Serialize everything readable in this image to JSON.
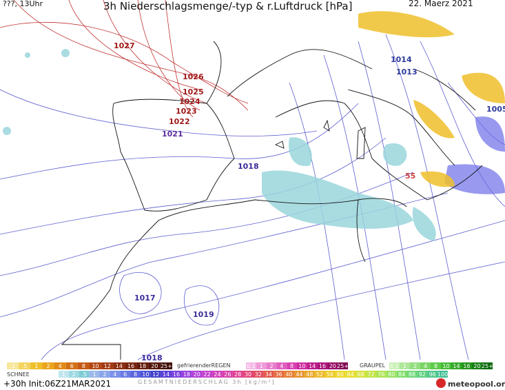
{
  "header": {
    "left": "???, 13Uhr",
    "title": "3h Niederschlagsmenge/-typ & r.Luftdruck [hPa]",
    "date": "22. Maerz 2021"
  },
  "isobar_labels": [
    "1027",
    "1026",
    "1025",
    "1024",
    "1023",
    "1022",
    "1021",
    "1018",
    "1014",
    "1013",
    "1005",
    "1017",
    "1019",
    "1018",
    "55"
  ],
  "legend": {
    "rain": {
      "labels": [
        ".1",
        ".5",
        "1",
        "2",
        "4",
        "6",
        "8",
        "10",
        "12",
        "14",
        "16",
        "18",
        "20",
        "25+"
      ],
      "colors": [
        "#f6e79a",
        "#f3d35c",
        "#efbf2a",
        "#e9a51c",
        "#e08a17",
        "#d27016",
        "#c45a15",
        "#b34713",
        "#a13a12",
        "#8c2e10",
        "#78240d",
        "#651c0b",
        "#521409",
        "#3f0e07"
      ]
    },
    "freezing_rain": {
      "title": "gefrierenderREGEN",
      "labels": [
        "0.1",
        "1",
        "2",
        "4",
        "8",
        "10",
        "14",
        "16",
        "20",
        "25+"
      ],
      "colors": [
        "#f5b8e6",
        "#ef9ad9",
        "#e87ccc",
        "#e05ebf",
        "#d840b2",
        "#cc2aa0",
        "#bc1c8c",
        "#aa1278",
        "#960a64",
        "#800550"
      ]
    },
    "graupel": {
      "title": "GRAUPEL",
      "labels": [
        "0.1",
        "1",
        "2",
        "4",
        "8",
        "10",
        "14",
        "16",
        "20",
        "25+"
      ],
      "colors": [
        "#c9f0b5",
        "#aee79a",
        "#93de7f",
        "#78d464",
        "#5dca49",
        "#46bb36",
        "#33a828",
        "#23931d",
        "#167e14",
        "#0b680c"
      ]
    },
    "snow": {
      "title": "SCHNEE",
      "labels": [
        "1",
        "2",
        ".5",
        "1",
        "2",
        "4",
        "6",
        "8",
        "10",
        "12",
        "14",
        "16",
        "18",
        "20",
        "22",
        "24",
        "26",
        "28",
        "30",
        "32",
        "34",
        "36",
        "40",
        "44",
        "48",
        "52",
        "56",
        "60",
        "64",
        "68",
        "72",
        "76",
        "80",
        "84",
        "88",
        "92",
        "96",
        "100"
      ],
      "colors": [
        "#bfe6ec",
        "#9fd9e2",
        "#7ecbd6",
        "#9ab8e8",
        "#8aa4ea",
        "#7a8fe8",
        "#6a7ae4",
        "#5b66dd",
        "#4d53d4",
        "#4141c8",
        "#5a3fd6",
        "#7a3fdc",
        "#9a3fde",
        "#b040d8",
        "#c340cc",
        "#d040bc",
        "#d93fa8",
        "#df4090",
        "#e24478",
        "#e24c60",
        "#e2584a",
        "#e46a3c",
        "#e67e34",
        "#e8922e",
        "#eaa62a",
        "#ecb828",
        "#eec828",
        "#eed62a",
        "#e6de30",
        "#d6e23a",
        "#c2e446",
        "#aee452",
        "#98e25e",
        "#82de6a",
        "#6ed874",
        "#5cd07e",
        "#4cc688",
        "#3ebc92"
      ]
    }
  },
  "footer": {
    "run": "+30h Init:06Z21MAR2021",
    "total": "GESAMTNIEDERSCHLAG 3h [kg/m²]",
    "brand": "meteopool.org"
  }
}
